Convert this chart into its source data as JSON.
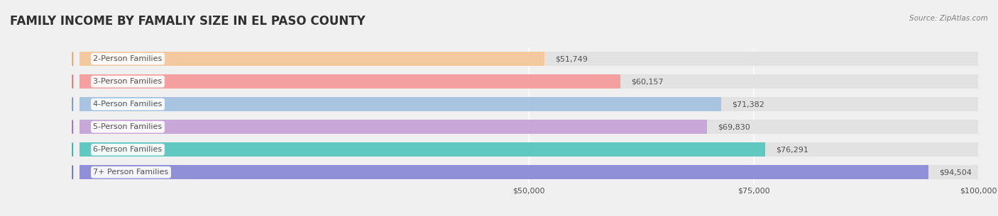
{
  "title": "FAMILY INCOME BY FAMALIY SIZE IN EL PASO COUNTY",
  "source": "Source: ZipAtlas.com",
  "categories": [
    "2-Person Families",
    "3-Person Families",
    "4-Person Families",
    "5-Person Families",
    "6-Person Families",
    "7+ Person Families"
  ],
  "values": [
    51749,
    60157,
    71382,
    69830,
    76291,
    94504
  ],
  "bar_colors": [
    "#f5c9a0",
    "#f5a0a0",
    "#a8c4e0",
    "#c8a8d8",
    "#60c8c0",
    "#9090d8"
  ],
  "icon_colors": [
    "#e8a060",
    "#e07070",
    "#7090c8",
    "#9868b8",
    "#30a8a0",
    "#6868c0"
  ],
  "xmax": 100000,
  "xticks": [
    0,
    50000,
    75000,
    100000
  ],
  "xtick_labels": [
    "",
    "$50,000",
    "$75,000",
    "$100,000"
  ],
  "bg_color": "#f0f0f0",
  "bar_bg_color": "#e8e8e8",
  "title_color": "#303030",
  "label_color": "#505050",
  "value_color": "#505050",
  "source_color": "#808080"
}
